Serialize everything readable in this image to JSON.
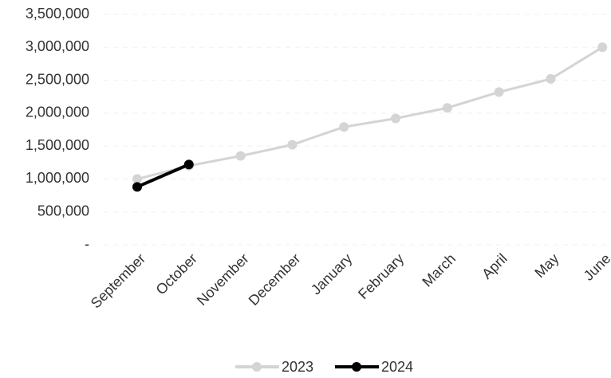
{
  "chart_data": {
    "type": "line",
    "categories": [
      "September",
      "October",
      "November",
      "December",
      "January",
      "February",
      "March",
      "April",
      "May",
      "June"
    ],
    "series": [
      {
        "name": "2023",
        "color": "#d4d4d4",
        "values": [
          1000000,
          1200000,
          1350000,
          1520000,
          1790000,
          1920000,
          2080000,
          2320000,
          2520000,
          3000000
        ]
      },
      {
        "name": "2024",
        "color": "#000000",
        "values": [
          880000,
          1220000,
          null,
          null,
          null,
          null,
          null,
          null,
          null,
          null
        ]
      }
    ],
    "ylim": [
      0,
      3500000
    ],
    "yticks": [
      {
        "value": 0,
        "label": "-"
      },
      {
        "value": 500000,
        "label": "500,000"
      },
      {
        "value": 1000000,
        "label": "1,000,000"
      },
      {
        "value": 1500000,
        "label": "1,500,000"
      },
      {
        "value": 2000000,
        "label": "2,000,000"
      },
      {
        "value": 2500000,
        "label": "2,500,000"
      },
      {
        "value": 3000000,
        "label": "3,000,000"
      },
      {
        "value": 3500000,
        "label": "3,500,000"
      }
    ],
    "grid": true,
    "legend": "bottom"
  }
}
